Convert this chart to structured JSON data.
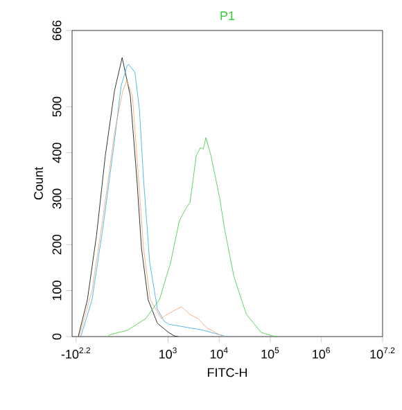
{
  "chart_data": {
    "type": "line",
    "title": "P1",
    "xlabel": "FITC-H",
    "ylabel": "Count",
    "log": "x",
    "xlim": [
      13.2,
      15800000
    ],
    "ylim": [
      0,
      666
    ],
    "xticks": [
      {
        "value": 15.8,
        "label": "-10$^{2.2}$"
      },
      {
        "value": 1000,
        "label": "10$^{3}$"
      },
      {
        "value": 10000,
        "label": "10$^{4}$"
      },
      {
        "value": 100000,
        "label": "10$^{5}$"
      },
      {
        "value": 1000000,
        "label": "10$^{6}$"
      },
      {
        "value": 15800000,
        "label": "10$^{7.2}$"
      }
    ],
    "yticks": [
      0,
      100,
      200,
      300,
      400,
      500,
      666
    ],
    "marker": "none",
    "line_style": "solid",
    "grid": false,
    "series": [
      {
        "color": "#000000",
        "x": [
          17.4,
          26.3,
          39.8,
          58.9,
          89.1,
          126,
          182,
          245,
          302,
          407,
          617,
          1020,
          1350,
          1580
        ],
        "values": [
          0,
          80,
          221,
          393,
          534,
          607,
          524,
          342,
          191,
          80,
          29,
          9,
          1,
          0
        ]
      },
      {
        "color": "#29a8e0",
        "x": [
          19.5,
          32.4,
          53.7,
          89.1,
          120,
          158,
          170,
          224,
          275,
          331,
          437,
          617,
          832,
          1020,
          4790,
          10200,
          13800
        ],
        "values": [
          0,
          80,
          241,
          425,
          545,
          590,
          592,
          575,
          494,
          342,
          161,
          60,
          34,
          27,
          14,
          4,
          0
        ]
      },
      {
        "color": "#f0a070",
        "x": [
          18.2,
          32.4,
          53.7,
          89.1,
          129,
          155,
          200,
          245,
          331,
          447,
          741,
          832,
          1230,
          1820,
          2690,
          3890,
          5750,
          10200,
          12300
        ],
        "values": [
          0,
          100,
          262,
          443,
          534,
          557,
          524,
          393,
          191,
          80,
          39,
          44,
          55,
          65,
          48,
          39,
          19,
          4,
          0
        ]
      },
      {
        "color": "#33cc33",
        "x": [
          64.6,
          72.4,
          162,
          363,
          676,
          1120,
          1660,
          2190,
          2690,
          3550,
          4270,
          4900,
          5500,
          6920,
          10200,
          12900,
          19500,
          33900,
          66100,
          115000,
          138000
        ],
        "values": [
          0,
          4,
          14,
          39,
          80,
          161,
          252,
          277,
          292,
          393,
          411,
          408,
          433,
          393,
          302,
          231,
          130,
          49,
          9,
          1,
          0
        ]
      }
    ]
  }
}
